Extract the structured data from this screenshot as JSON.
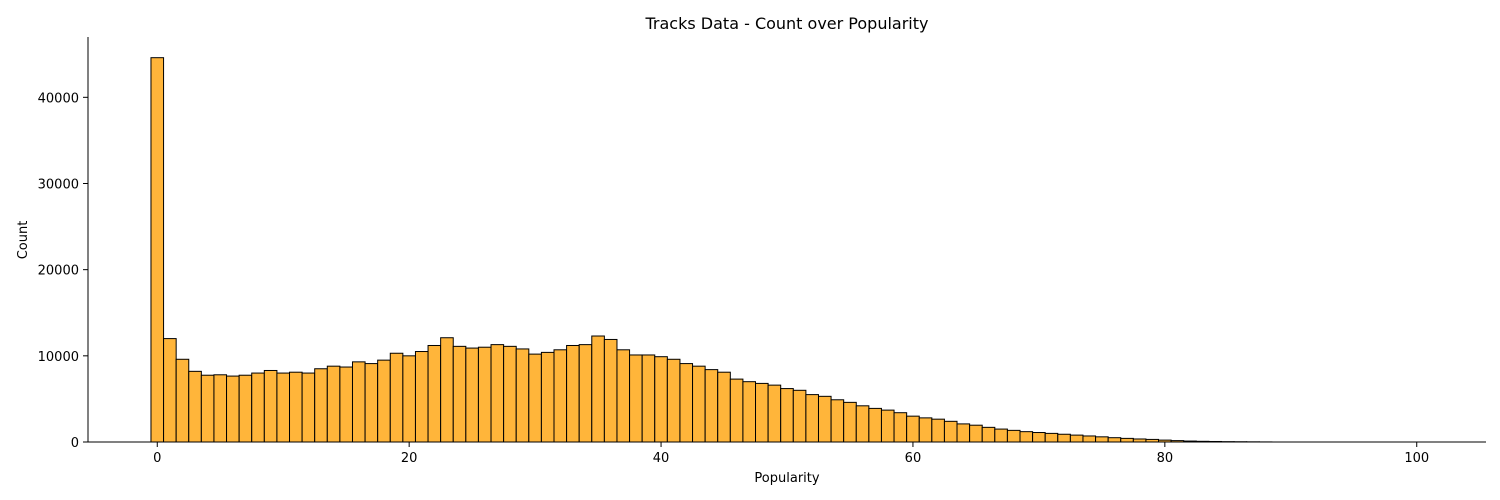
{
  "chart_data": {
    "type": "bar",
    "title": "Tracks Data - Count over Popularity",
    "xlabel": "Popularity",
    "ylabel": "Count",
    "xlim": [
      -5.5,
      105.5
    ],
    "ylim": [
      0,
      47000
    ],
    "x_ticks": [
      0,
      20,
      40,
      60,
      80,
      100
    ],
    "y_ticks": [
      0,
      10000,
      20000,
      30000,
      40000
    ],
    "bar_color": "#FFB53A",
    "edge_color": "#000000",
    "grid": false,
    "bins": {
      "start": -0.5,
      "width": 1.0,
      "values": [
        44600,
        12000,
        9600,
        8200,
        7750,
        7800,
        7650,
        7750,
        8000,
        8300,
        8000,
        8100,
        8000,
        8500,
        8800,
        8700,
        9300,
        9100,
        9500,
        10300,
        10000,
        10500,
        11200,
        12100,
        11100,
        10900,
        11000,
        11300,
        11100,
        10800,
        10200,
        10400,
        10700,
        11200,
        11300,
        12300,
        11900,
        10700,
        10100,
        10100,
        9900,
        9600,
        9100,
        8800,
        8400,
        8100,
        7300,
        7000,
        6800,
        6600,
        6200,
        6000,
        5500,
        5300,
        4900,
        4600,
        4200,
        3900,
        3700,
        3400,
        3000,
        2800,
        2650,
        2400,
        2100,
        1950,
        1700,
        1500,
        1350,
        1200,
        1100,
        1000,
        900,
        800,
        700,
        600,
        500,
        420,
        350,
        300,
        220,
        160,
        110,
        80,
        60,
        40,
        30,
        20,
        10
      ]
    }
  }
}
